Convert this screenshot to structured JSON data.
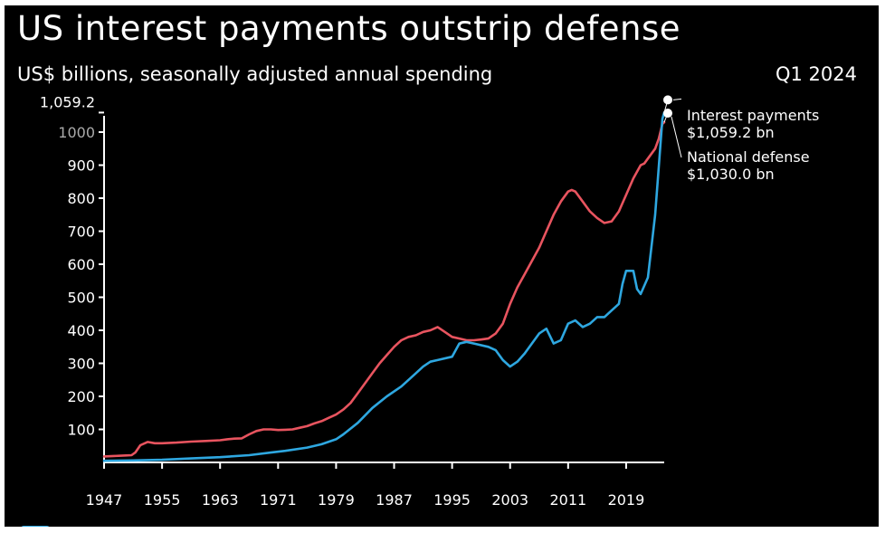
{
  "header": {
    "title": "US interest payments outstrip defense",
    "subtitle": "US$ billions, seasonally adjusted annual spending",
    "period": "Q1 2024"
  },
  "annotations": {
    "interest_line1": "Interest payments",
    "interest_line2": "$1,059.2 bn",
    "defense_line1": "National defense",
    "defense_line2": "$1,030.0 bn"
  },
  "chart_data": {
    "type": "line",
    "title": "US interest payments outstrip defense",
    "subtitle": "US$ billions, seasonally adjusted annual spending",
    "xlabel": "",
    "ylabel": "",
    "xlim": [
      1947,
      2024.25
    ],
    "ylim": [
      0,
      1059.2
    ],
    "grid": false,
    "x_ticks": [
      1947,
      1955,
      1963,
      1971,
      1979,
      1987,
      1995,
      2003,
      2011,
      2019
    ],
    "x_tick_labels": [
      "1947",
      "1955",
      "1963",
      "1971",
      "1979",
      "1987",
      "1995",
      "2003",
      "2011",
      "2019"
    ],
    "y_ticks": [
      100,
      200,
      300,
      400,
      500,
      600,
      700,
      800,
      900,
      1000,
      1059.2
    ],
    "y_tick_labels": [
      "100",
      "200",
      "300",
      "400",
      "500",
      "600",
      "700",
      "800",
      "900",
      "1000",
      "1,059.2"
    ],
    "highlight_tick": "1,059.2",
    "colors": {
      "interest": "#2ea7e0",
      "defense": "#e8545f",
      "axis": "#ffffff",
      "text": "#ffffff",
      "background": "#000000",
      "muted_tick": "#aaaaaa"
    },
    "series": [
      {
        "key": "defense",
        "color": "#e8545f",
        "x": [
          1947,
          1949,
          1950,
          1950.8,
          1951.3,
          1952,
          1953,
          1954,
          1955,
          1957,
          1959,
          1961,
          1963,
          1964,
          1965,
          1966,
          1967,
          1968,
          1969,
          1970,
          1971,
          1972,
          1973,
          1974,
          1975,
          1976,
          1977,
          1978,
          1979,
          1980,
          1981,
          1982,
          1983,
          1984,
          1985,
          1986,
          1987,
          1988,
          1989,
          1990,
          1991,
          1992,
          1993,
          1994,
          1995,
          1996,
          1997,
          1998,
          1999,
          2000,
          2001,
          2002,
          2003,
          2004,
          2005,
          2006,
          2007,
          2008,
          2009,
          2010,
          2011,
          2011.5,
          2012,
          2013,
          2014,
          2015,
          2016,
          2017,
          2018,
          2019,
          2020,
          2021,
          2021.5,
          2022,
          2023,
          2023.5,
          2024,
          2024.25
        ],
        "values": [
          18,
          20,
          21,
          22,
          30,
          52,
          62,
          58,
          58,
          60,
          63,
          65,
          67,
          70,
          72,
          73,
          85,
          95,
          100,
          100,
          98,
          99,
          100,
          105,
          110,
          118,
          125,
          135,
          145,
          160,
          180,
          210,
          240,
          270,
          300,
          325,
          350,
          370,
          380,
          385,
          395,
          400,
          410,
          395,
          380,
          375,
          370,
          370,
          372,
          375,
          390,
          420,
          480,
          530,
          570,
          610,
          650,
          700,
          750,
          790,
          820,
          825,
          820,
          790,
          760,
          740,
          725,
          730,
          760,
          810,
          860,
          900,
          905,
          920,
          950,
          980,
          1025,
          1030
        ]
      },
      {
        "key": "interest",
        "color": "#2ea7e0",
        "x": [
          1947,
          1951,
          1955,
          1959,
          1963,
          1967,
          1970,
          1972,
          1975,
          1977,
          1979,
          1980,
          1982,
          1984,
          1986,
          1988,
          1990,
          1991,
          1992,
          1993,
          1995,
          1996,
          1997,
          1998,
          2000,
          2001,
          2002,
          2003,
          2004,
          2005,
          2007,
          2008,
          2009,
          2010,
          2011,
          2012,
          2013,
          2014,
          2015,
          2016,
          2017,
          2018,
          2018.5,
          2019,
          2020,
          2020.5,
          2021,
          2022,
          2023,
          2024,
          2024.25
        ],
        "values": [
          5,
          6,
          8,
          12,
          16,
          22,
          30,
          35,
          45,
          55,
          70,
          85,
          120,
          165,
          200,
          230,
          270,
          290,
          305,
          310,
          320,
          360,
          365,
          360,
          350,
          340,
          310,
          290,
          305,
          330,
          390,
          405,
          360,
          370,
          420,
          430,
          410,
          420,
          440,
          440,
          460,
          480,
          540,
          580,
          580,
          525,
          510,
          560,
          750,
          1040,
          1059.2
        ]
      }
    ]
  }
}
